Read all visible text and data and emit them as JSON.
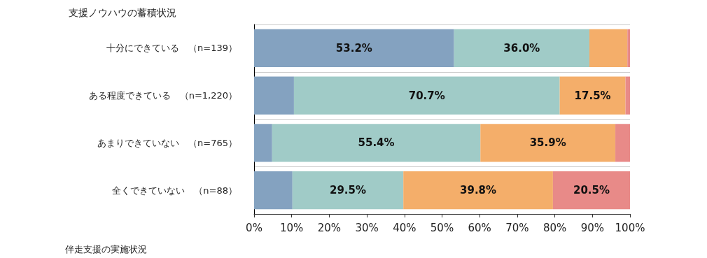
{
  "chart_data": {
    "type": "bar",
    "orientation": "horizontal",
    "stacked": true,
    "title": "支援ノウハウの蓄積状況",
    "categories": [
      "十分にできている　（n=139）",
      "ある程度できている　（n=1,220）",
      "あまりできていない　（n=765）",
      "全くできていない　（n=88）"
    ],
    "series": [
      {
        "color": "#84a2c0",
        "values": [
          53.2,
          10.6,
          4.8,
          10.2
        ],
        "value_labels": [
          "53.2%",
          null,
          null,
          null
        ]
      },
      {
        "color": "#a0cbc7",
        "values": [
          36.0,
          70.7,
          55.4,
          29.5
        ],
        "value_labels": [
          "36.0%",
          "70.7%",
          "55.4%",
          "29.5%"
        ]
      },
      {
        "color": "#f4ae6a",
        "values": [
          10.1,
          17.5,
          35.9,
          39.8
        ],
        "value_labels": [
          null,
          "17.5%",
          "35.9%",
          "39.8%"
        ]
      },
      {
        "color": "#e88a88",
        "values": [
          0.7,
          1.2,
          3.9,
          20.5
        ],
        "value_labels": [
          null,
          null,
          null,
          "20.5%"
        ]
      }
    ],
    "xlim": [
      0,
      100
    ],
    "xticks": [
      {
        "value": 0,
        "label": "0%"
      },
      {
        "value": 10,
        "label": "10%"
      },
      {
        "value": 20,
        "label": "20%"
      },
      {
        "value": 30,
        "label": "30%"
      },
      {
        "value": 40,
        "label": "40%"
      },
      {
        "value": 50,
        "label": "50%"
      },
      {
        "value": 60,
        "label": "60%"
      },
      {
        "value": 70,
        "label": "70%"
      },
      {
        "value": 80,
        "label": "80%"
      },
      {
        "value": 90,
        "label": "90%"
      },
      {
        "value": 100,
        "label": "100%"
      }
    ],
    "grid": "y",
    "annotations": [
      "伴走支援の実施状況"
    ]
  }
}
